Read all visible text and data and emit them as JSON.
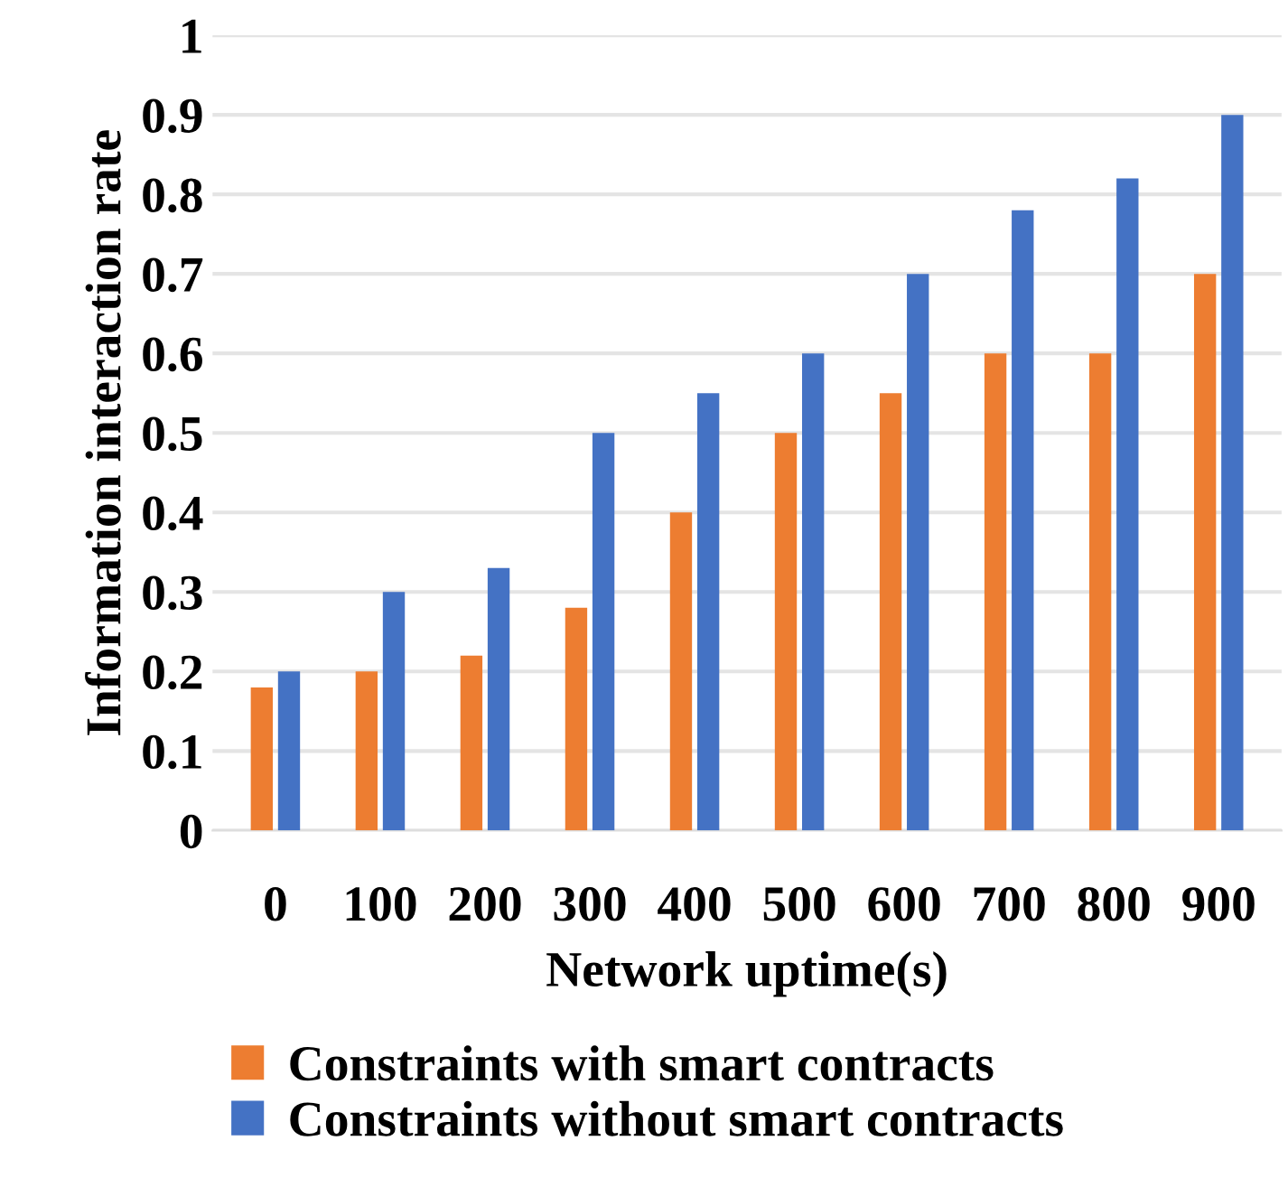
{
  "chart_data": {
    "type": "bar",
    "xlabel": "Network uptime(s)",
    "ylabel": "Information interaction rate",
    "categories": [
      "0",
      "100",
      "200",
      "300",
      "400",
      "500",
      "600",
      "700",
      "800",
      "900"
    ],
    "series": [
      {
        "name": "Constraints with smart contracts",
        "color": "#ed7d31",
        "values": [
          0.18,
          0.2,
          0.22,
          0.28,
          0.4,
          0.5,
          0.55,
          0.6,
          0.6,
          0.7
        ]
      },
      {
        "name": "Constraints without smart contracts",
        "color": "#4472c4",
        "values": [
          0.2,
          0.3,
          0.33,
          0.5,
          0.55,
          0.6,
          0.7,
          0.78,
          0.82,
          0.9
        ]
      }
    ],
    "ylim": [
      0,
      1
    ],
    "yticks": [
      0,
      0.1,
      0.2,
      0.3,
      0.4,
      0.5,
      0.6,
      0.7,
      0.8,
      0.9,
      1
    ],
    "grid": "y",
    "legend": "bottom"
  }
}
